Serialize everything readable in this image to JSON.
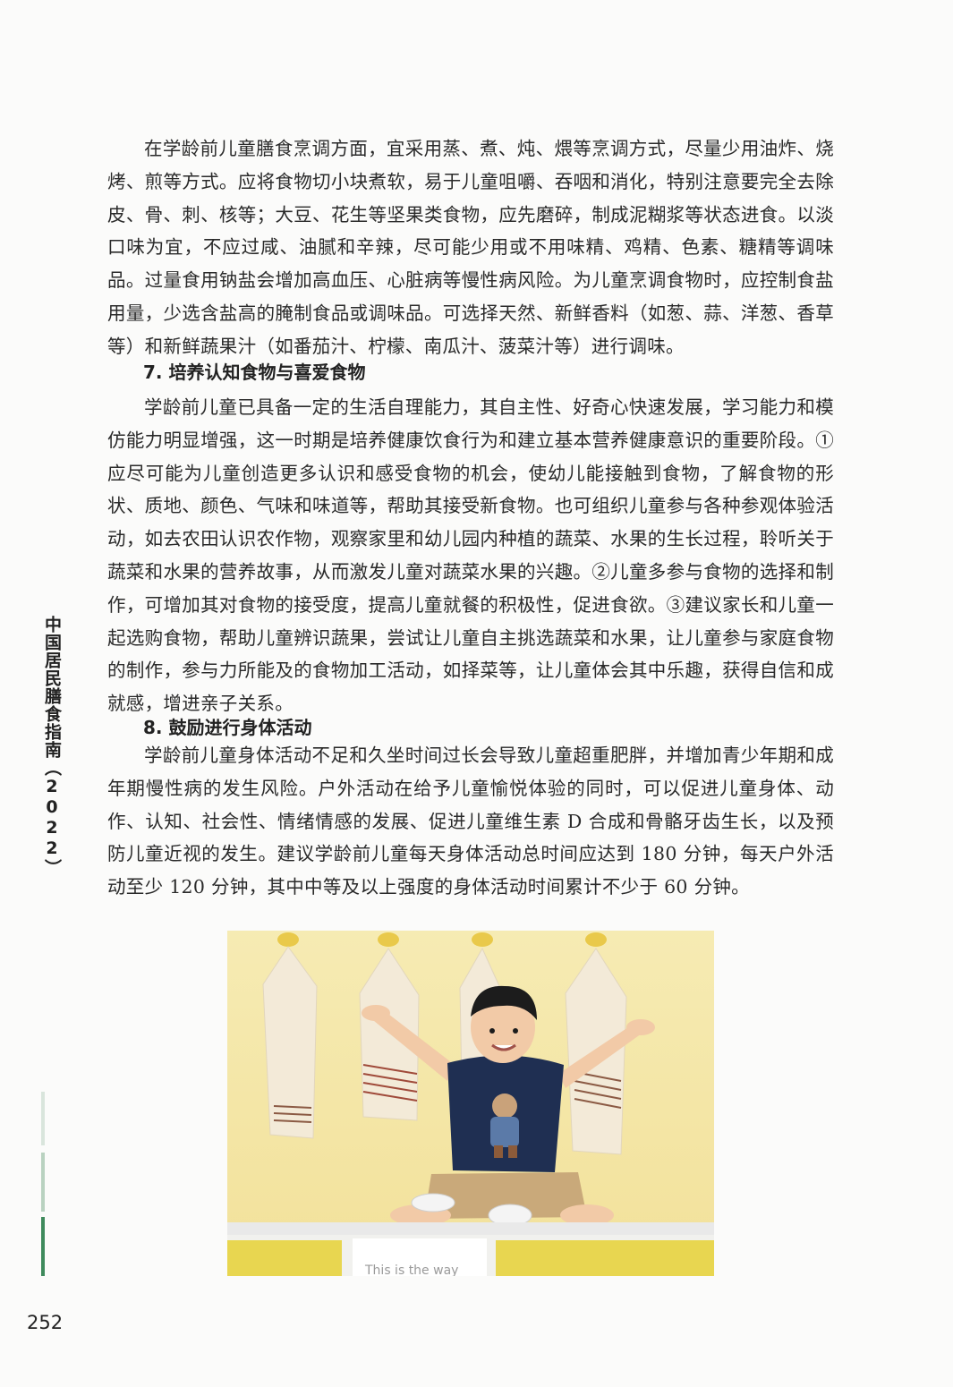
{
  "body": {
    "para1": "在学龄前儿童膳食烹调方面，宜采用蒸、煮、炖、煨等烹调方式，尽量少用油炸、烧烤、煎等方式。应将食物切小块煮软，易于儿童咀嚼、吞咽和消化，特别注意要完全去除皮、骨、刺、核等；大豆、花生等坚果类食物，应先磨碎，制成泥糊浆等状态进食。以淡口味为宜，不应过咸、油腻和辛辣，尽可能少用或不用味精、鸡精、色素、糖精等调味品。过量食用钠盐会增加高血压、心脏病等慢性病风险。为儿童烹调食物时，应控制食盐用量，少选含盐高的腌制食品或调味品。可选择天然、新鲜香料（如葱、蒜、洋葱、香草等）和新鲜蔬果汁（如番茄汁、柠檬、南瓜汁、菠菜汁等）进行调味。",
    "heading7": "7. 培养认知食物与喜爱食物",
    "para2": "学龄前儿童已具备一定的生活自理能力，其自主性、好奇心快速发展，学习能力和模仿能力明显增强，这一时期是培养健康饮食行为和建立基本营养健康意识的重要阶段。①应尽可能为儿童创造更多认识和感受食物的机会，使幼儿能接触到食物，了解食物的形状、质地、颜色、气味和味道等，帮助其接受新食物。也可组织儿童参与各种参观体验活动，如去农田认识农作物，观察家里和幼儿园内种植的蔬菜、水果的生长过程，聆听关于蔬菜和水果的营养故事，从而激发儿童对蔬菜水果的兴趣。②儿童多参与食物的选择和制作，可增加其对食物的接受度，提高儿童就餐的积极性，促进食欲。③建议家长和儿童一起选购食物，帮助儿童辨识蔬果，尝试让儿童自主挑选蔬菜和水果，让儿童参与家庭食物的制作，参与力所能及的食物加工活动，如择菜等，让儿童体会其中乐趣，获得自信和成就感，增进亲子关系。",
    "heading8": "8. 鼓励进行身体活动",
    "para3": "学龄前儿童身体活动不足和久坐时间过长会导致儿童超重肥胖，并增加青少年期和成年期慢性病的发生风险。户外活动在给予儿童愉悦体验的同时，可以促进儿童身体、动作、认知、社会性、情绪情感的发展、促进儿童维生素 D 合成和骨骼牙齿生长，以及预防儿童近视的发生。建议学龄前儿童每天身体活动总时间应达到 180 分钟，每天户外活动至少 120 分钟，其中中等及以上强度的身体活动时间累计不少于 60 分钟。"
  },
  "side_title": "中国居民膳食指南（2022）",
  "page_number": "252",
  "photo": {
    "bench_text": "This is the way"
  },
  "colors": {
    "wall": "#f4e7a8",
    "accent_green": "#3f8a5c"
  }
}
